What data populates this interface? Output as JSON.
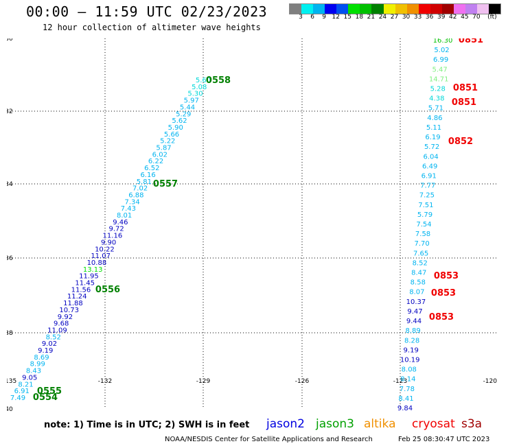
{
  "title": "00:00 – 11:59 UTC 02/23/2023",
  "subtitle": "12 hour collection of altimeter wave heights",
  "scale": {
    "colors": [
      "#7f7f7f",
      "#00f0f0",
      "#00b4f0",
      "#0000f0",
      "#0050f0",
      "#00e000",
      "#00c000",
      "#008000",
      "#f0f000",
      "#f0c000",
      "#f09000",
      "#f00000",
      "#d00000",
      "#a00000",
      "#f070f0",
      "#c080f0",
      "#f0c0f0",
      "#000000"
    ],
    "labels": [
      "3",
      "6",
      "9",
      "12",
      "15",
      "18",
      "21",
      "24",
      "27",
      "30",
      "33",
      "36",
      "39",
      "42",
      "45",
      "70",
      "(ft)"
    ]
  },
  "axes": {
    "lon_labels": [
      "-135",
      "-132",
      "-129",
      "-126",
      "-123",
      "-120"
    ],
    "lat_labels": [
      "-30",
      "-32",
      "-34",
      "-36",
      "-38",
      "-40"
    ]
  },
  "tracks": [
    {
      "points": [
        {
          "t": "5.60",
          "c": "#00d8d8"
        },
        {
          "t": "5.08",
          "c": "#00d8d8"
        },
        {
          "t": "5.30",
          "c": "#00d8d8"
        },
        {
          "t": "5.97",
          "c": "#00b4f0"
        },
        {
          "t": "5.44",
          "c": "#00b4f0"
        },
        {
          "t": "5.29",
          "c": "#00b4f0"
        },
        {
          "t": "5.62",
          "c": "#00b4f0"
        },
        {
          "t": "5.90",
          "c": "#00b4f0"
        },
        {
          "t": "5.66",
          "c": "#00b4f0"
        },
        {
          "t": "5.22",
          "c": "#00b4f0"
        },
        {
          "t": "5.87",
          "c": "#00b4f0"
        },
        {
          "t": "6.02",
          "c": "#00b4f0"
        },
        {
          "t": "6.22",
          "c": "#00b4f0"
        },
        {
          "t": "6.52",
          "c": "#00b4f0"
        },
        {
          "t": "6.16",
          "c": "#00b4f0"
        },
        {
          "t": "5.81",
          "c": "#00b4f0"
        },
        {
          "t": "7.02",
          "c": "#00b4f0"
        },
        {
          "t": "6.88",
          "c": "#00b4f0"
        },
        {
          "t": "7.34",
          "c": "#00b4f0"
        },
        {
          "t": "7.43",
          "c": "#00b4f0"
        },
        {
          "t": "8.01",
          "c": "#00b4f0"
        },
        {
          "t": "9.46",
          "c": "#0000c0"
        },
        {
          "t": "9.72",
          "c": "#0000c0"
        },
        {
          "t": "11.16",
          "c": "#0000c0"
        },
        {
          "t": "9.90",
          "c": "#0000c0"
        },
        {
          "t": "10.22",
          "c": "#0000c0"
        },
        {
          "t": "11.07",
          "c": "#0000c0"
        },
        {
          "t": "10.88",
          "c": "#0000c0"
        },
        {
          "t": "13.13",
          "c": "#00e000"
        },
        {
          "t": "11.95",
          "c": "#0000c0"
        },
        {
          "t": "11.45",
          "c": "#0000c0"
        },
        {
          "t": "11.56",
          "c": "#0000c0"
        },
        {
          "t": "11.24",
          "c": "#0000c0"
        },
        {
          "t": "11.88",
          "c": "#0000c0"
        },
        {
          "t": "10.73",
          "c": "#0000c0"
        },
        {
          "t": "9.92",
          "c": "#0000c0"
        },
        {
          "t": "9.68",
          "c": "#0000c0"
        },
        {
          "t": "11.09",
          "c": "#0000c0"
        },
        {
          "t": "8.52",
          "c": "#00b4f0"
        },
        {
          "t": "9.02",
          "c": "#0000c0"
        },
        {
          "t": "9.19",
          "c": "#0000c0"
        },
        {
          "t": "8.69",
          "c": "#00b4f0"
        },
        {
          "t": "8.99",
          "c": "#00b4f0"
        },
        {
          "t": "8.43",
          "c": "#00b4f0"
        },
        {
          "t": "9.05",
          "c": "#0000c0"
        },
        {
          "t": "8.21",
          "c": "#00b4f0"
        },
        {
          "t": "6.91",
          "c": "#00b4f0"
        },
        {
          "t": "7.49",
          "c": "#00b4f0"
        }
      ]
    },
    {
      "points": [
        {
          "t": "16.30",
          "c": "#00c000"
        },
        {
          "t": "5.02",
          "c": "#00b4f0"
        },
        {
          "t": "6.99",
          "c": "#00b4f0"
        },
        {
          "t": "5.47",
          "c": "#80f080"
        },
        {
          "t": "14.71",
          "c": "#80f080"
        },
        {
          "t": "5.28",
          "c": "#00d8d8"
        },
        {
          "t": "4.38",
          "c": "#00d8d8"
        },
        {
          "t": "5.71",
          "c": "#00b4f0"
        },
        {
          "t": "4.86",
          "c": "#00b4f0"
        },
        {
          "t": "5.11",
          "c": "#00b4f0"
        },
        {
          "t": "6.19",
          "c": "#00b4f0"
        },
        {
          "t": "5.72",
          "c": "#00b4f0"
        },
        {
          "t": "6.04",
          "c": "#00b4f0"
        },
        {
          "t": "6.49",
          "c": "#00b4f0"
        },
        {
          "t": "6.91",
          "c": "#00b4f0"
        },
        {
          "t": "7.77",
          "c": "#00b4f0"
        },
        {
          "t": "7.25",
          "c": "#00b4f0"
        },
        {
          "t": "7.51",
          "c": "#00b4f0"
        },
        {
          "t": "5.79",
          "c": "#00b4f0"
        },
        {
          "t": "7.54",
          "c": "#00b4f0"
        },
        {
          "t": "7.58",
          "c": "#00b4f0"
        },
        {
          "t": "7.70",
          "c": "#00b4f0"
        },
        {
          "t": "7.65",
          "c": "#00b4f0"
        },
        {
          "t": "8.52",
          "c": "#00b4f0"
        },
        {
          "t": "8.47",
          "c": "#00b4f0"
        },
        {
          "t": "8.58",
          "c": "#00b4f0"
        },
        {
          "t": "8.07",
          "c": "#00b4f0"
        },
        {
          "t": "10.37",
          "c": "#0000c0"
        },
        {
          "t": "9.47",
          "c": "#0000c0"
        },
        {
          "t": "9.44",
          "c": "#0000c0"
        },
        {
          "t": "8.89",
          "c": "#00b4f0"
        },
        {
          "t": "8.28",
          "c": "#00b4f0"
        },
        {
          "t": "9.19",
          "c": "#0000c0"
        },
        {
          "t": "10.19",
          "c": "#0000c0"
        },
        {
          "t": "8.08",
          "c": "#00b4f0"
        },
        {
          "t": "8.14",
          "c": "#00b4f0"
        },
        {
          "t": "7.78",
          "c": "#00b4f0"
        },
        {
          "t": "8.41",
          "c": "#00b4f0"
        },
        {
          "t": "9.84",
          "c": "#0000c0"
        }
      ]
    }
  ],
  "time_labels": [
    {
      "t": "0558",
      "c": "#008000"
    },
    {
      "t": "0557",
      "c": "#008000"
    },
    {
      "t": "0556",
      "c": "#008000"
    },
    {
      "t": "0555",
      "c": "#008000"
    },
    {
      "t": "0554",
      "c": "#008000"
    },
    {
      "t": "0851",
      "c": "#f00000"
    },
    {
      "t": "0851",
      "c": "#f00000"
    },
    {
      "t": "0851",
      "c": "#f00000"
    },
    {
      "t": "0852",
      "c": "#f00000"
    },
    {
      "t": "0853",
      "c": "#f00000"
    },
    {
      "t": "0853",
      "c": "#f00000"
    },
    {
      "t": "0853",
      "c": "#f00000"
    }
  ],
  "note": "note: 1) Time is in UTC; 2) SWH is in feet",
  "satellites": [
    {
      "name": "jason2",
      "c": "#0000e0"
    },
    {
      "name": "jason3",
      "c": "#00a000"
    },
    {
      "name": "altika",
      "c": "#f09000"
    },
    {
      "name": "cryosat",
      "c": "#f00000"
    },
    {
      "name": "s3a",
      "c": "#a00000"
    }
  ],
  "footer": {
    "source": "NOAA/NESDIS Center for Satellite Applications and Research",
    "timestamp": "Feb 25 08:30:47 UTC 2023"
  }
}
